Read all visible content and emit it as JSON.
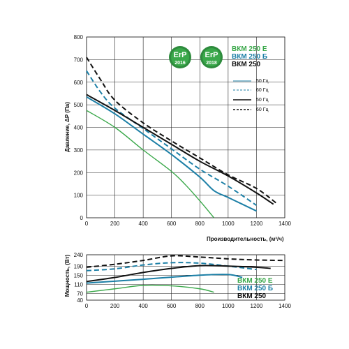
{
  "colors": {
    "E": "#3aa84a",
    "B": "#1c7fa6",
    "base": "#111111",
    "grid": "#222222",
    "badge_ring": "#2e8b3d",
    "badge_fill": "#3aa84a"
  },
  "badges": [
    {
      "label": "ErP",
      "year": "2016"
    },
    {
      "label": "ErP",
      "year": "2018"
    }
  ],
  "models": [
    {
      "key": "E",
      "label": "ВКМ 250 Е"
    },
    {
      "key": "B",
      "label": "ВКМ 250 Б"
    },
    {
      "key": "base",
      "label": "ВКМ 250"
    }
  ],
  "legend": [
    {
      "key": "B",
      "style": "solid",
      "label": "50 Гц"
    },
    {
      "key": "B",
      "style": "dashed",
      "label": "60 Гц"
    },
    {
      "key": "base",
      "style": "solid",
      "label": "50 Гц"
    },
    {
      "key": "base",
      "style": "dashed",
      "label": "60 Гц"
    }
  ],
  "chart_data": [
    {
      "type": "line",
      "ylabel": "Давление, ΔP (Па)",
      "xlim": [
        0,
        1400
      ],
      "ylim": [
        0,
        800
      ],
      "x_ticks": [
        0,
        200,
        400,
        600,
        800,
        1000,
        1200,
        1400
      ],
      "y_ticks": [
        0,
        100,
        200,
        300,
        400,
        500,
        600,
        700,
        800
      ],
      "grid": true,
      "series": [
        {
          "key": "E",
          "style": "solid",
          "x": [
            0,
            200,
            400,
            600,
            700,
            800,
            900
          ],
          "y": [
            475,
            400,
            300,
            205,
            145,
            75,
            0
          ]
        },
        {
          "key": "B",
          "style": "solid",
          "x": [
            0,
            200,
            400,
            600,
            800,
            900,
            1000,
            1100,
            1200
          ],
          "y": [
            535,
            460,
            370,
            280,
            180,
            120,
            90,
            60,
            30
          ]
        },
        {
          "key": "B",
          "style": "dashed",
          "x": [
            0,
            100,
            200,
            400,
            600,
            800,
            1000,
            1200
          ],
          "y": [
            650,
            555,
            485,
            395,
            305,
            215,
            140,
            55
          ]
        },
        {
          "key": "base",
          "style": "solid",
          "x": [
            0,
            200,
            400,
            600,
            800,
            1000,
            1200,
            1320
          ],
          "y": [
            545,
            475,
            400,
            325,
            250,
            185,
            110,
            60
          ]
        },
        {
          "key": "base",
          "style": "dashed",
          "x": [
            0,
            100,
            200,
            400,
            600,
            800,
            1000,
            1200,
            1340
          ],
          "y": [
            710,
            610,
            520,
            420,
            340,
            265,
            190,
            130,
            65
          ]
        }
      ]
    },
    {
      "type": "line",
      "xlabel": "Производительность, (м³/ч)",
      "ylabel": "Мощность, (Вт)",
      "xlim": [
        0,
        1400
      ],
      "ylim": [
        40,
        240
      ],
      "x_ticks": [
        0,
        200,
        400,
        600,
        800,
        1000,
        1200,
        1400
      ],
      "y_ticks": [
        40,
        70,
        110,
        150,
        190,
        240
      ],
      "grid": true,
      "series": [
        {
          "key": "E",
          "style": "solid",
          "x": [
            0,
            200,
            400,
            600,
            800,
            900
          ],
          "y": [
            75,
            90,
            105,
            103,
            90,
            75
          ]
        },
        {
          "key": "B",
          "style": "solid",
          "x": [
            0,
            400,
            800,
            1000,
            1100
          ],
          "y": [
            115,
            132,
            150,
            153,
            140
          ]
        },
        {
          "key": "B",
          "style": "dashed",
          "x": [
            0,
            200,
            400,
            600,
            800,
            1000,
            1200
          ],
          "y": [
            170,
            178,
            195,
            205,
            203,
            190,
            175
          ]
        },
        {
          "key": "base",
          "style": "solid",
          "x": [
            0,
            200,
            400,
            600,
            800,
            1000,
            1200,
            1300
          ],
          "y": [
            122,
            140,
            162,
            180,
            192,
            190,
            185,
            180
          ]
        },
        {
          "key": "base",
          "style": "dashed",
          "x": [
            0,
            200,
            400,
            600,
            800,
            1000,
            1200,
            1400
          ],
          "y": [
            185,
            198,
            215,
            235,
            230,
            222,
            217,
            215
          ]
        }
      ]
    }
  ]
}
